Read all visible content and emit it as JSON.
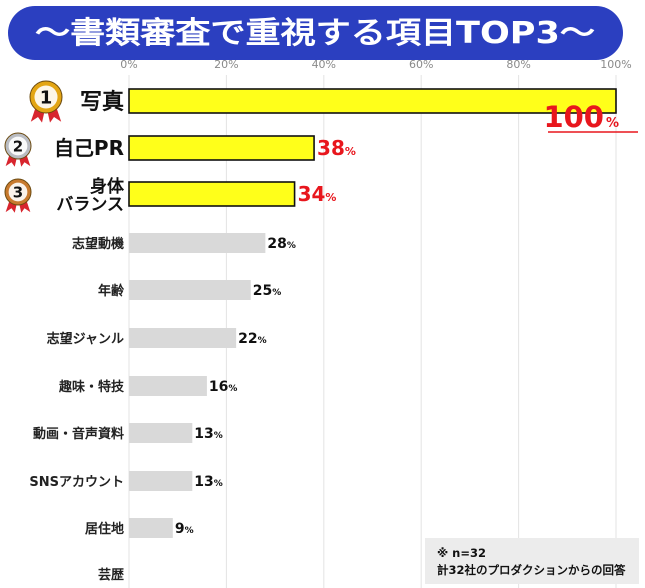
{
  "chart_data": {
    "type": "bar",
    "orientation": "horizontal",
    "title": "〜書類審査で重視する項目TOP3〜",
    "categories": [
      "写真",
      "自己PR",
      "身体バランス",
      "志望動機",
      "年齢",
      "志望ジャンル",
      "趣味・特技",
      "動画・音声資料",
      "SNSアカウント",
      "居住地",
      "芸歴"
    ],
    "category_lines": [
      [
        "写真"
      ],
      [
        "自己PR"
      ],
      [
        "身体",
        "バランス"
      ],
      [
        "志望動機"
      ],
      [
        "年齢"
      ],
      [
        "志望ジャンル"
      ],
      [
        "趣味・特技"
      ],
      [
        "動画・音声資料"
      ],
      [
        "SNSアカウント"
      ],
      [
        "居住地"
      ],
      [
        "芸歴"
      ]
    ],
    "values": [
      100,
      38,
      34,
      28,
      25,
      22,
      16,
      13,
      13,
      9,
      null
    ],
    "value_labels": [
      "100",
      "38",
      "34",
      "28",
      "25",
      "22",
      "16",
      "13",
      "13",
      "9",
      ""
    ],
    "value_unit": "%",
    "rank_badges": [
      "1",
      "2",
      "3"
    ],
    "xlim": [
      0,
      100
    ],
    "x_ticks": [
      "0%",
      "20%",
      "40%",
      "60%",
      "80%",
      "100%"
    ],
    "grid": true,
    "colors": {
      "title_bg": "#2b3fc0",
      "title_text": "#ffffff",
      "top_bar": "#ffff1a",
      "other_bar": "#d9d9d9",
      "top_value": "#e8161d",
      "other_value": "#111111",
      "badge_gold": "#e3a514",
      "badge_silver": "#b9bcc2",
      "badge_bronze": "#c87a2e",
      "ribbon": "#d8252e"
    }
  },
  "note": {
    "line1": "※ n=32",
    "line2": "計32社のプロダクションからの回答"
  }
}
